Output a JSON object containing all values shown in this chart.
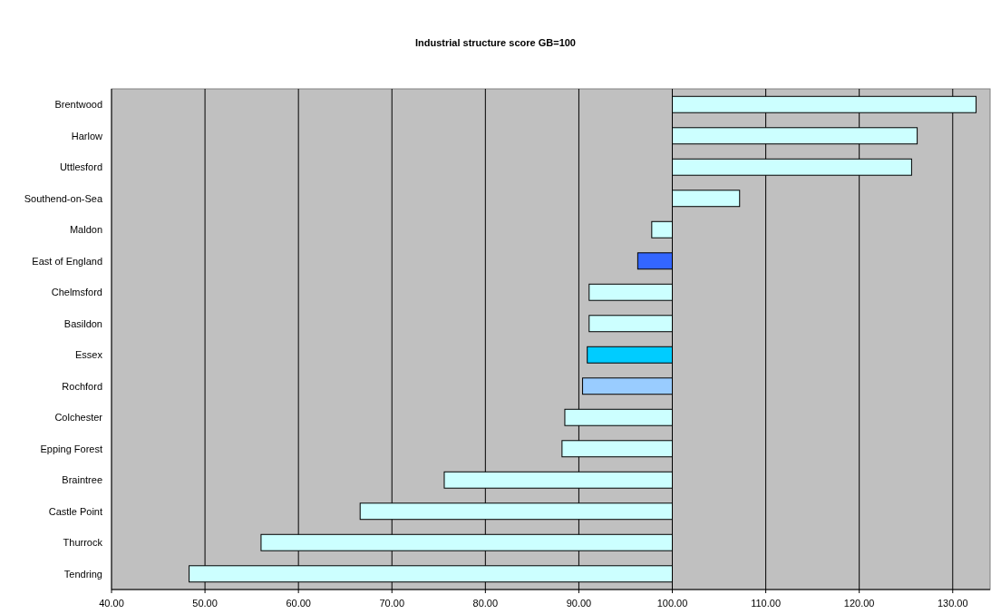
{
  "chart_data": {
    "type": "bar",
    "orientation": "horizontal",
    "title": "Industrial structure score GB=100",
    "categories": [
      "Brentwood",
      "Harlow",
      "Uttlesford",
      "Southend-on-Sea",
      "Maldon",
      "East of England",
      "Chelmsford",
      "Basildon",
      "Essex",
      "Rochford",
      "Colchester",
      "Epping Forest",
      "Braintree",
      "Castle Point",
      "Thurrock",
      "Tendring"
    ],
    "base": [
      100,
      100,
      100,
      100,
      100,
      100,
      100,
      100,
      100,
      100,
      100,
      100,
      100,
      100,
      100,
      100
    ],
    "values": [
      32.5,
      26.2,
      25.6,
      7.2,
      -2.2,
      -3.7,
      -8.9,
      -8.9,
      -9.1,
      -9.6,
      -11.5,
      -11.8,
      -24.4,
      -33.4,
      -44.0,
      -51.7
    ],
    "colors": [
      "#ccffff",
      "#ccffff",
      "#ccffff",
      "#ccffff",
      "#ccffff",
      "#3366ff",
      "#ccffff",
      "#ccffff",
      "#00ccff",
      "#99ccff",
      "#ccffff",
      "#ccffff",
      "#ccffff",
      "#ccffff",
      "#ccffff",
      "#ccffff"
    ],
    "xlim": [
      40,
      134
    ],
    "xticks": [
      {
        "value": 40,
        "label": "40.00"
      },
      {
        "value": 50,
        "label": "50.00"
      },
      {
        "value": 60,
        "label": "60.00"
      },
      {
        "value": 70,
        "label": "70.00"
      },
      {
        "value": 80,
        "label": "80.00"
      },
      {
        "value": 90,
        "label": "90.00"
      },
      {
        "value": 100,
        "label": "100.00"
      },
      {
        "value": 110,
        "label": "110.00"
      },
      {
        "value": 120,
        "label": "120.00"
      },
      {
        "value": 130,
        "label": "130.00"
      }
    ],
    "grid": "x"
  }
}
